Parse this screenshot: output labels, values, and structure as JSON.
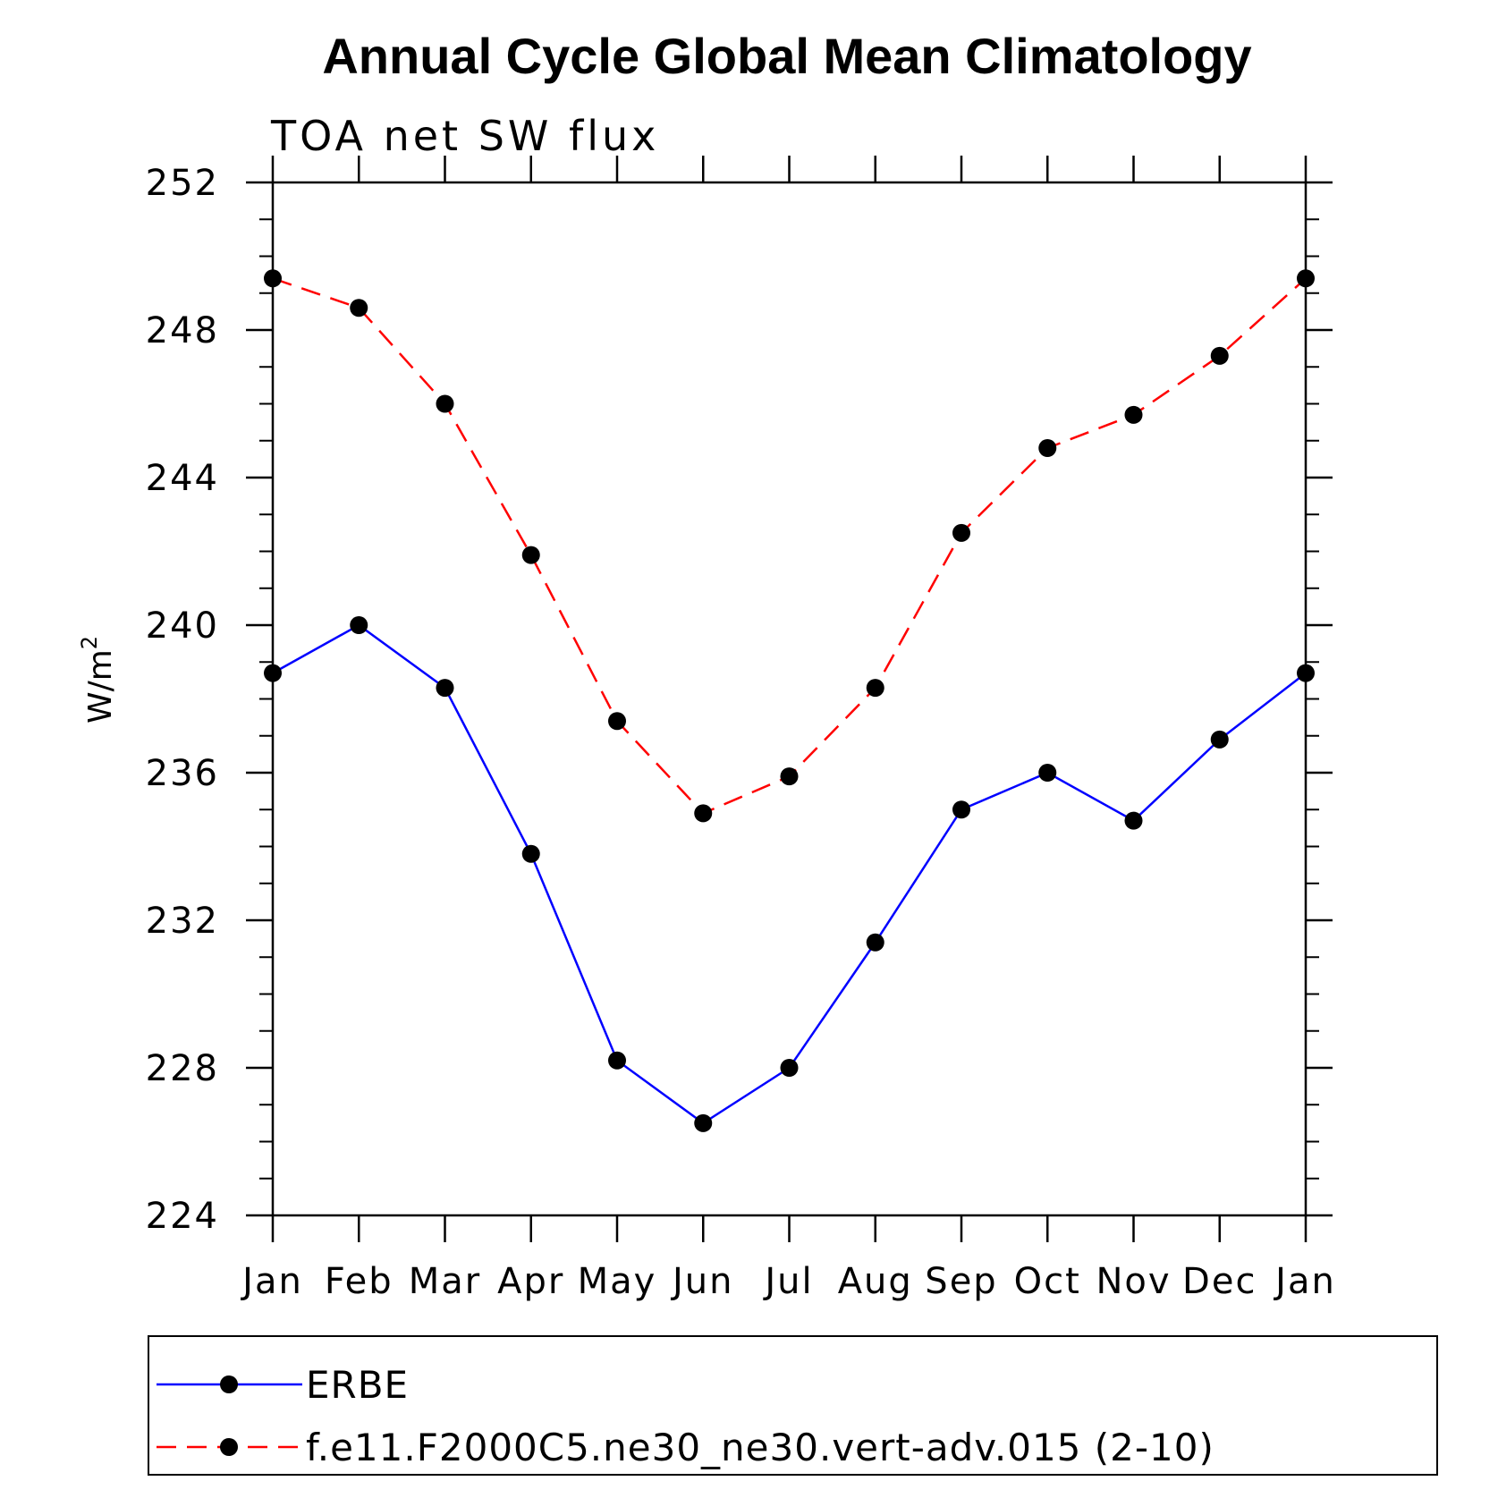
{
  "chart_data": {
    "type": "line",
    "title": "Annual Cycle Global Mean Climatology",
    "subtitle": "TOA net SW flux",
    "ylabel_base": "W/m",
    "ylabel_exp": "2",
    "ylabel": "W/m²",
    "ylim": [
      224,
      252
    ],
    "yticks": [
      224,
      228,
      232,
      236,
      240,
      244,
      248,
      252
    ],
    "categories": [
      "Jan",
      "Feb",
      "Mar",
      "Apr",
      "May",
      "Jun",
      "Jul",
      "Aug",
      "Sep",
      "Oct",
      "Nov",
      "Dec",
      "Jan"
    ],
    "series": [
      {
        "name": "ERBE",
        "color": "#0000ff",
        "dash": "solid",
        "marker": "filled-circle",
        "values": [
          238.7,
          240.0,
          238.3,
          233.8,
          228.2,
          226.5,
          228.0,
          231.4,
          235.0,
          236.0,
          234.7,
          236.9,
          238.7
        ]
      },
      {
        "name": "f.e11.F2000C5.ne30_ne30.vert-adv.015 (2-10)",
        "color": "#ff0000",
        "dash": "dashed",
        "marker": "filled-circle",
        "values": [
          249.4,
          248.6,
          246.0,
          241.9,
          237.4,
          234.9,
          235.9,
          238.3,
          242.5,
          244.8,
          245.7,
          247.3,
          249.4
        ]
      }
    ],
    "legend_position": "bottom",
    "grid": false,
    "marker_color": "#000000"
  }
}
